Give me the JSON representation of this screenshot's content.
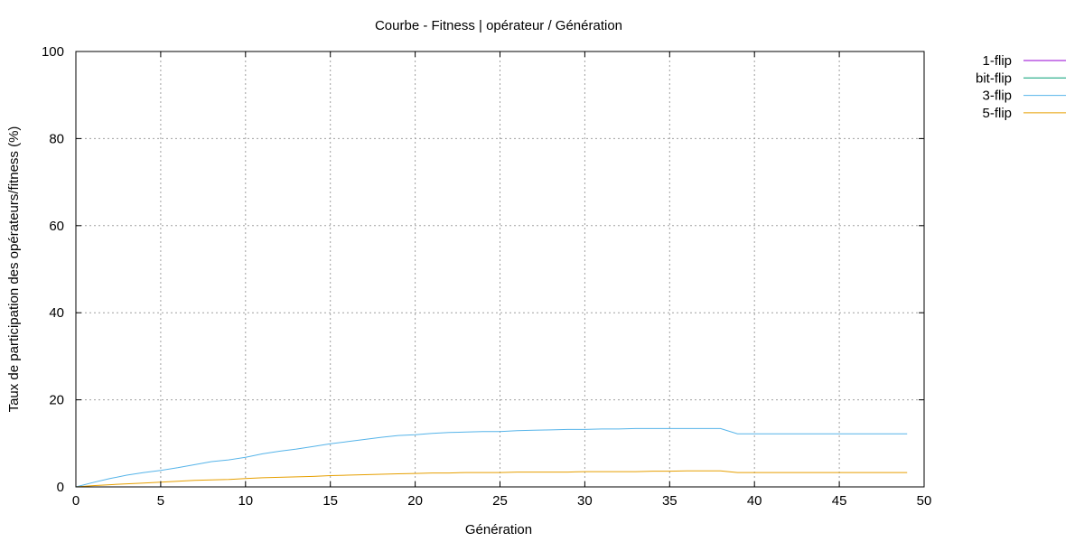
{
  "chart_data": {
    "type": "line",
    "title": "Courbe - Fitness | opérateur / Génération",
    "xlabel": "Génération",
    "ylabel": "Taux de participation des opérateurs/fitness (%)",
    "xlim": [
      0,
      50
    ],
    "ylim": [
      0,
      100
    ],
    "x_ticks": [
      0,
      5,
      10,
      15,
      20,
      25,
      30,
      35,
      40,
      45,
      50
    ],
    "y_ticks": [
      0,
      20,
      40,
      60,
      80,
      100
    ],
    "grid": true,
    "legend_position": "outside-top-right",
    "x": [
      0,
      1,
      2,
      3,
      4,
      5,
      6,
      7,
      8,
      9,
      10,
      11,
      12,
      13,
      14,
      15,
      16,
      17,
      18,
      19,
      20,
      21,
      22,
      23,
      24,
      25,
      26,
      27,
      28,
      29,
      30,
      31,
      32,
      33,
      34,
      35,
      36,
      37,
      38,
      39,
      40,
      41,
      42,
      43,
      44,
      45,
      46,
      47,
      48,
      49
    ],
    "series": [
      {
        "name": "1-flip",
        "color": "#9400d3",
        "values": [
          0,
          0,
          0,
          0,
          0,
          0,
          0,
          0,
          0,
          0,
          0,
          0,
          0,
          0,
          0,
          0,
          0,
          0,
          0,
          0,
          0,
          0,
          0,
          0,
          0,
          0,
          0,
          0,
          0,
          0,
          0,
          0,
          0,
          0,
          0,
          0,
          0,
          0,
          0,
          0,
          0,
          0,
          0,
          0,
          0,
          0,
          0,
          0,
          0,
          0
        ]
      },
      {
        "name": "bit-flip",
        "color": "#009e73",
        "values": [
          0,
          0,
          0,
          0,
          0,
          0,
          0,
          0,
          0,
          0,
          0,
          0,
          0,
          0,
          0,
          0,
          0,
          0,
          0,
          0,
          0,
          0,
          0,
          0,
          0,
          0,
          0,
          0,
          0,
          0,
          0,
          0,
          0,
          0,
          0,
          0,
          0,
          0,
          0,
          0,
          0,
          0,
          0,
          0,
          0,
          0,
          0,
          0,
          0,
          0
        ]
      },
      {
        "name": "3-flip",
        "color": "#56b4e9",
        "values": [
          0,
          1,
          1.9,
          2.7,
          3.3,
          3.8,
          4.4,
          5.1,
          5.8,
          6.2,
          6.8,
          7.6,
          8.2,
          8.7,
          9.3,
          9.9,
          10.4,
          10.9,
          11.4,
          11.8,
          12.0,
          12.3,
          12.5,
          12.6,
          12.7,
          12.7,
          12.9,
          13.0,
          13.1,
          13.2,
          13.2,
          13.3,
          13.3,
          13.4,
          13.4,
          13.4,
          13.4,
          13.4,
          13.4,
          12.2,
          12.2,
          12.2,
          12.2,
          12.2,
          12.2,
          12.2,
          12.2,
          12.2,
          12.2,
          12.2
        ]
      },
      {
        "name": "5-flip",
        "color": "#e69f00",
        "values": [
          0,
          0.3,
          0.5,
          0.7,
          0.9,
          1.1,
          1.3,
          1.5,
          1.6,
          1.7,
          1.9,
          2.1,
          2.2,
          2.3,
          2.4,
          2.6,
          2.7,
          2.8,
          2.9,
          3.0,
          3.1,
          3.2,
          3.2,
          3.3,
          3.3,
          3.3,
          3.4,
          3.4,
          3.4,
          3.4,
          3.5,
          3.5,
          3.5,
          3.5,
          3.6,
          3.6,
          3.7,
          3.7,
          3.7,
          3.3,
          3.3,
          3.3,
          3.3,
          3.3,
          3.3,
          3.3,
          3.3,
          3.3,
          3.3,
          3.3
        ]
      }
    ]
  }
}
